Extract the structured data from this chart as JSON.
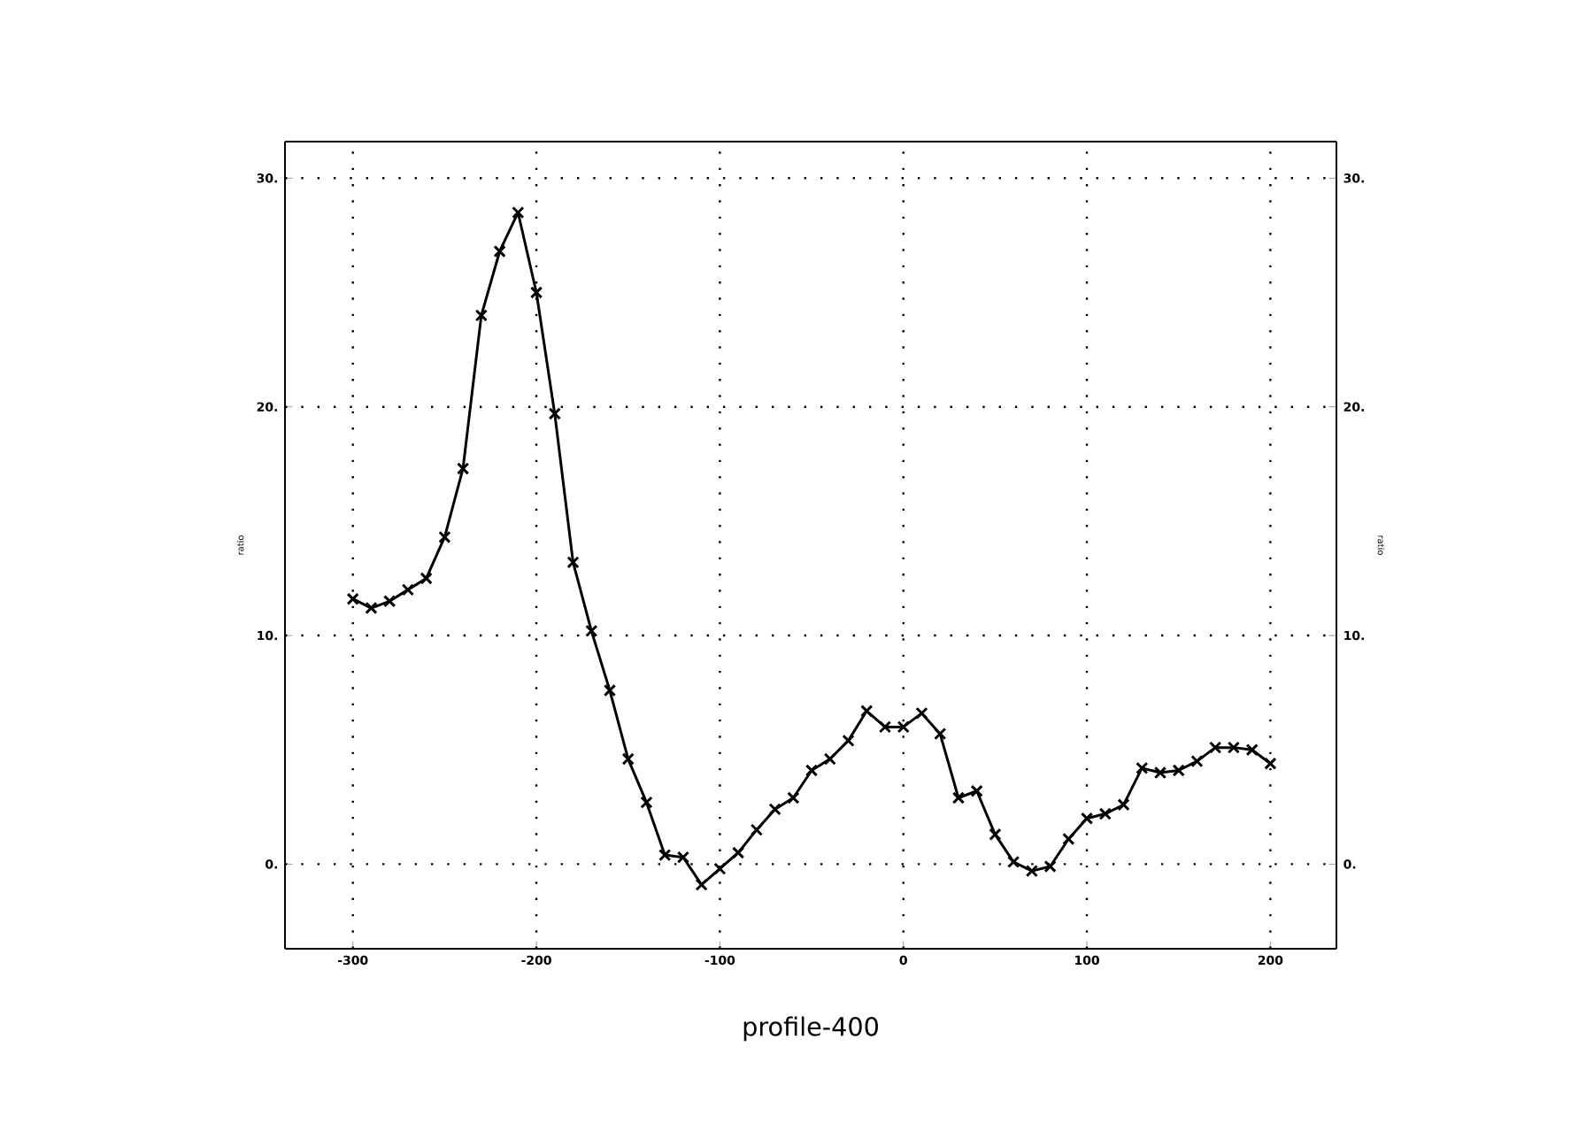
{
  "chart_data": {
    "type": "line",
    "xlabel": "profile-400",
    "ylabel": "ratio",
    "y2label": "ratio",
    "x": [
      -300,
      -290,
      -280,
      -270,
      -260,
      -250,
      -240,
      -230,
      -220,
      -210,
      -200,
      -190,
      -180,
      -170,
      -160,
      -150,
      -140,
      -130,
      -120,
      -110,
      -100,
      -90,
      -80,
      -70,
      -60,
      -50,
      -40,
      -30,
      -20,
      -10,
      0,
      10,
      20,
      30,
      40,
      50,
      60,
      70,
      80,
      90,
      100,
      110,
      120,
      130,
      140,
      150,
      160,
      170,
      180,
      190,
      200
    ],
    "series": [
      {
        "color": "#000000",
        "values": [
          11.6,
          11.2,
          11.5,
          12.0,
          12.5,
          14.3,
          17.3,
          24.0,
          26.8,
          28.5,
          25.0,
          19.7,
          13.2,
          10.2,
          7.6,
          4.6,
          2.7,
          0.4,
          0.3,
          -0.9,
          -0.2,
          0.5,
          1.5,
          2.4,
          2.9,
          4.1,
          4.6,
          5.4,
          6.7,
          6.0,
          6.0,
          6.6,
          5.7,
          2.9,
          3.2,
          1.3,
          0.1,
          -0.3,
          -0.1,
          1.1,
          2.0,
          2.2,
          2.6,
          4.2,
          4.0,
          4.1,
          4.5,
          5.1,
          5.1,
          5.0,
          4.4
        ]
      }
    ],
    "xlim": [
      -337,
      236
    ],
    "ylim": [
      -3.7,
      31.6
    ],
    "y2lim": [
      -3.7,
      31.6
    ],
    "xticks": [
      -300,
      -200,
      -100,
      0,
      100,
      200
    ],
    "yticks": [
      {
        "value": 0,
        "label": "0."
      },
      {
        "value": 10,
        "label": "10."
      },
      {
        "value": 20,
        "label": "20."
      },
      {
        "value": 30,
        "label": "30."
      }
    ],
    "y2ticks": [
      {
        "value": 0,
        "label": "0."
      },
      {
        "value": 10,
        "label": "10."
      },
      {
        "value": 20,
        "label": "20."
      },
      {
        "value": 30,
        "label": "30."
      }
    ],
    "grid": true,
    "marker": "cross",
    "line_style": "solid"
  }
}
